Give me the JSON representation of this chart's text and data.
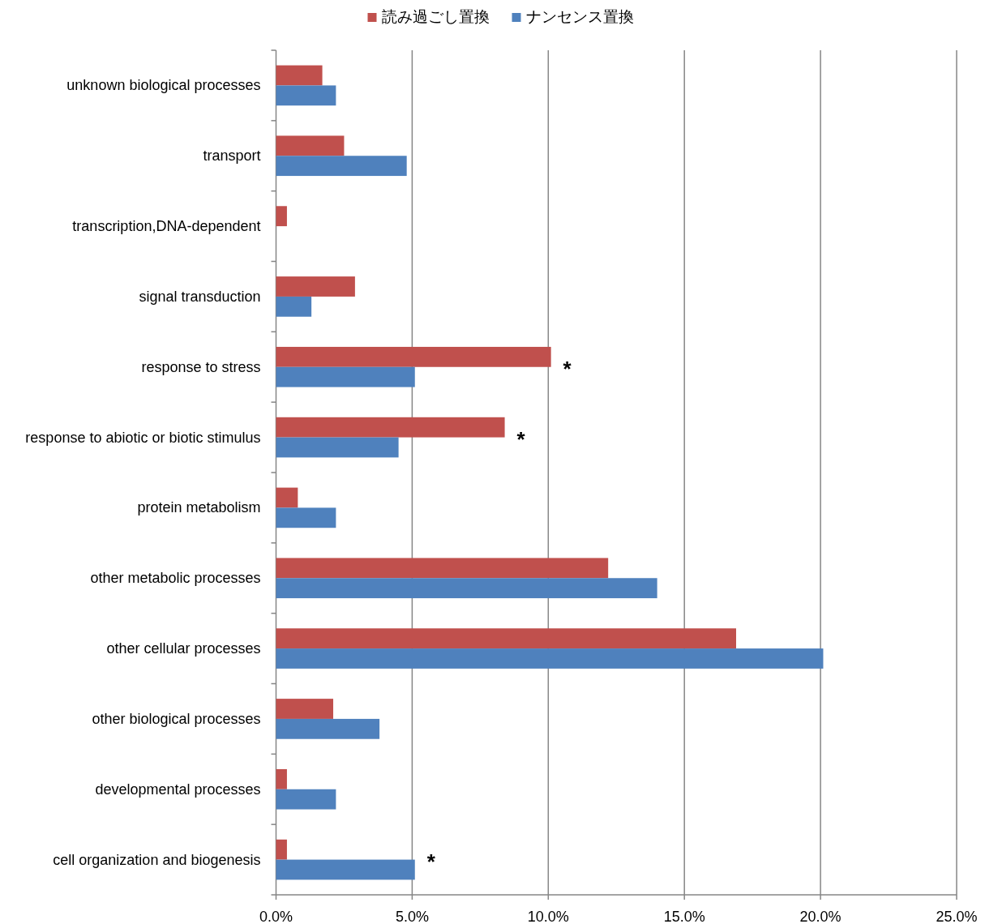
{
  "chart_data": {
    "type": "bar",
    "orientation": "horizontal",
    "categories": [
      "unknown biological processes",
      "transport",
      "transcription,DNA-dependent",
      "signal transduction",
      "response to stress",
      "response to abiotic or biotic stimulus",
      "protein metabolism",
      "other metabolic processes",
      "other cellular processes",
      "other biological processes",
      "developmental processes",
      "cell organization and biogenesis"
    ],
    "series": [
      {
        "name": "読み過ごし置換",
        "color": "#c0504d",
        "values": [
          1.7,
          2.5,
          0.4,
          2.9,
          10.1,
          8.4,
          0.8,
          12.2,
          16.9,
          2.1,
          0.4,
          0.4
        ]
      },
      {
        "name": "ナンセンス置換",
        "color": "#4f81bd",
        "values": [
          2.2,
          4.8,
          null,
          1.3,
          5.1,
          4.5,
          2.2,
          14.0,
          20.1,
          3.8,
          2.2,
          5.1
        ]
      }
    ],
    "xlim": [
      0,
      25
    ],
    "xticks": [
      {
        "value": 0,
        "label": "0.0%"
      },
      {
        "value": 5,
        "label": "5.0%"
      },
      {
        "value": 10,
        "label": "10.0%"
      },
      {
        "value": 15,
        "label": "15.0%"
      },
      {
        "value": 20,
        "label": "20.0%"
      },
      {
        "value": 25,
        "label": "25.0%"
      }
    ],
    "grid": "x",
    "legend": "top",
    "annotations": [
      {
        "text": "*",
        "x": 10.1,
        "y": "response to stress"
      },
      {
        "text": "*",
        "x": 8.4,
        "y": "response to abiotic or biotic stimulus"
      },
      {
        "text": "*",
        "x": 5.1,
        "y": "cell organization and biogenesis"
      }
    ]
  }
}
